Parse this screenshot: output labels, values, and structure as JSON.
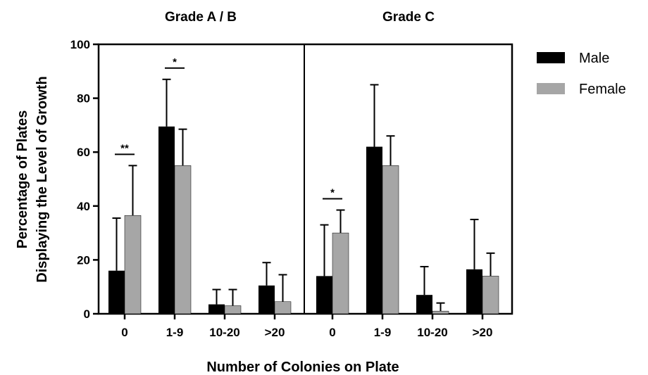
{
  "chart_data": {
    "type": "bar",
    "ylabel_line1": "Percentage of Plates",
    "ylabel_line2": "Displaying the Level of Growth",
    "xlabel": "Number of Colonies on Plate",
    "ylim": [
      0,
      100
    ],
    "yticks": [
      "0",
      "20",
      "40",
      "60",
      "80",
      "100"
    ],
    "legend_position": "top-right",
    "colors": {
      "Male": "#000000",
      "Female": "#a6a6a6"
    },
    "panels": [
      {
        "title": "Grade A / B",
        "categories": [
          "0",
          "1-9",
          "10-20",
          ">20"
        ],
        "series": [
          {
            "name": "Male",
            "values": [
              16,
              69.5,
              3.5,
              10.5
            ],
            "error": [
              19.5,
              17.5,
              5.5,
              8.5
            ]
          },
          {
            "name": "Female",
            "values": [
              36.5,
              55,
              3,
              4.5
            ],
            "error": [
              18.5,
              13.5,
              6,
              10
            ]
          }
        ],
        "significance": [
          {
            "category": "0",
            "label": "**"
          },
          {
            "category": "1-9",
            "label": "*"
          }
        ]
      },
      {
        "title": "Grade C",
        "categories": [
          "0",
          "1-9",
          "10-20",
          ">20"
        ],
        "series": [
          {
            "name": "Male",
            "values": [
              14,
              62,
              7,
              16.5
            ],
            "error": [
              19,
              23,
              10.5,
              18.5
            ]
          },
          {
            "name": "Female",
            "values": [
              30,
              55,
              1,
              14
            ],
            "error": [
              8.5,
              11,
              3,
              8.5
            ]
          }
        ],
        "significance": [
          {
            "category": "0",
            "label": "*"
          }
        ]
      }
    ],
    "legend": [
      "Male",
      "Female"
    ]
  }
}
